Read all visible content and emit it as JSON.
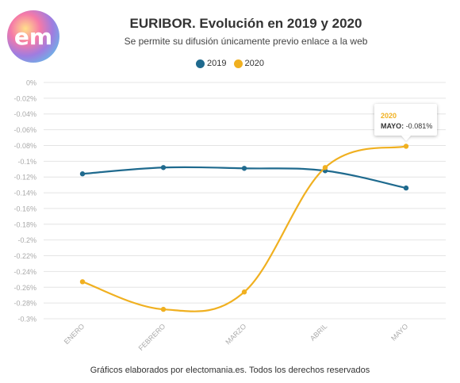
{
  "header": {
    "logo_text": "em",
    "title": "EURIBOR. Evolución en 2019 y 2020",
    "subtitle": "Se permite su difusión únicamente previo enlace a la web"
  },
  "footer": {
    "text": "Gráficos elaborados por electomania.es. Todos los derechos reservados"
  },
  "tooltip": {
    "series": "2020",
    "category": "MAYO:",
    "value": "-0.081%"
  },
  "colors": {
    "s2019": "#1f6a8e",
    "s2020": "#f0b020",
    "grid": "#e4e4e4",
    "axis_text": "#aaaaaa"
  },
  "chart_data": {
    "type": "line",
    "title": "EURIBOR. Evolución en 2019 y 2020",
    "subtitle": "Se permite su difusión únicamente previo enlace a la web",
    "categories": [
      "ENERO",
      "FEBRERO",
      "MARZO",
      "ABRIL",
      "MAYO"
    ],
    "ylim": [
      -0.3,
      0
    ],
    "yticks": [
      "0%",
      "-0.02%",
      "-0.04%",
      "-0.06%",
      "-0.08%",
      "-0.1%",
      "-0.12%",
      "-0.14%",
      "-0.16%",
      "-0.18%",
      "-0.2%",
      "-0.22%",
      "-0.24%",
      "-0.26%",
      "-0.28%",
      "-0.3%"
    ],
    "grid": true,
    "legend_position": "top-center",
    "series": [
      {
        "name": "2019",
        "color": "#1f6a8e",
        "values": [
          -0.116,
          -0.108,
          -0.109,
          -0.112,
          -0.134
        ]
      },
      {
        "name": "2020",
        "color": "#f0b020",
        "values": [
          -0.253,
          -0.288,
          -0.266,
          -0.108,
          -0.081
        ]
      }
    ]
  }
}
